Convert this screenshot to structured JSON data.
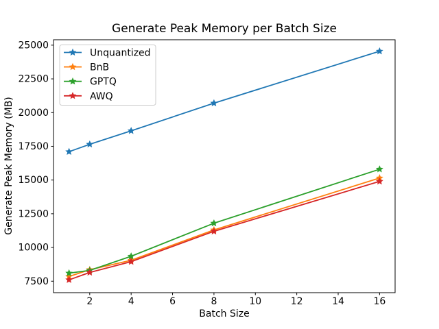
{
  "title": "Generate Peak Memory per Batch Size",
  "chart_data": {
    "type": "line",
    "title": "Generate Peak Memory per Batch Size",
    "xlabel": "Batch Size",
    "ylabel": "Generate Peak Memory (MB)",
    "x": [
      1,
      2,
      4,
      8,
      16
    ],
    "series": [
      {
        "name": "Unquantized",
        "color": "#1f77b4",
        "values": [
          17100,
          17650,
          18650,
          20700,
          24550
        ]
      },
      {
        "name": "BnB",
        "color": "#ff7f0e",
        "values": [
          7850,
          8350,
          9050,
          11300,
          15150
        ]
      },
      {
        "name": "GPTQ",
        "color": "#2ca02c",
        "values": [
          8100,
          8300,
          9350,
          11800,
          15800
        ]
      },
      {
        "name": "AWQ",
        "color": "#d62728",
        "values": [
          7600,
          8150,
          8950,
          11200,
          14900
        ]
      }
    ],
    "xlim": [
      0.25,
      16.75
    ],
    "ylim": [
      6650,
      25400
    ],
    "xticks": [
      2,
      4,
      6,
      8,
      10,
      12,
      14,
      16
    ],
    "yticks": [
      7500,
      10000,
      12500,
      15000,
      17500,
      20000,
      22500,
      25000
    ],
    "marker": "star",
    "grid": false,
    "legend_position": "upper left",
    "background_color": "#ffffff",
    "spine_color": "#000000",
    "legend_edge_color": "#cccccc"
  }
}
